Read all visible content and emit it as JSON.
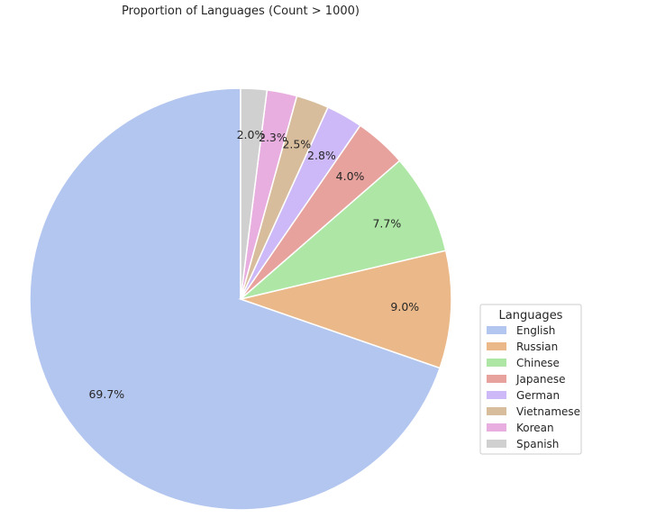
{
  "chart_data": {
    "type": "pie",
    "title": "Proportion of Languages (Count > 1000)",
    "legend_title": "Languages",
    "legend_placement": "center-right",
    "start_angle_deg": 90,
    "direction": "counterclockwise",
    "slices": [
      {
        "label": "English",
        "value": 69.7,
        "pct_label": "69.7%",
        "color": "#b3c6f0"
      },
      {
        "label": "Russian",
        "value": 9.0,
        "pct_label": "9.0%",
        "color": "#eab889"
      },
      {
        "label": "Chinese",
        "value": 7.7,
        "pct_label": "7.7%",
        "color": "#aee7a5"
      },
      {
        "label": "Japanese",
        "value": 4.0,
        "pct_label": "4.0%",
        "color": "#e8a29d"
      },
      {
        "label": "German",
        "value": 2.8,
        "pct_label": "2.8%",
        "color": "#cdb9f8"
      },
      {
        "label": "Vietnamese",
        "value": 2.5,
        "pct_label": "2.5%",
        "color": "#d8bd9d"
      },
      {
        "label": "Korean",
        "value": 2.3,
        "pct_label": "2.3%",
        "color": "#e9aee0"
      },
      {
        "label": "Spanish",
        "value": 2.0,
        "pct_label": "2.0%",
        "color": "#d0d0d0"
      }
    ]
  }
}
